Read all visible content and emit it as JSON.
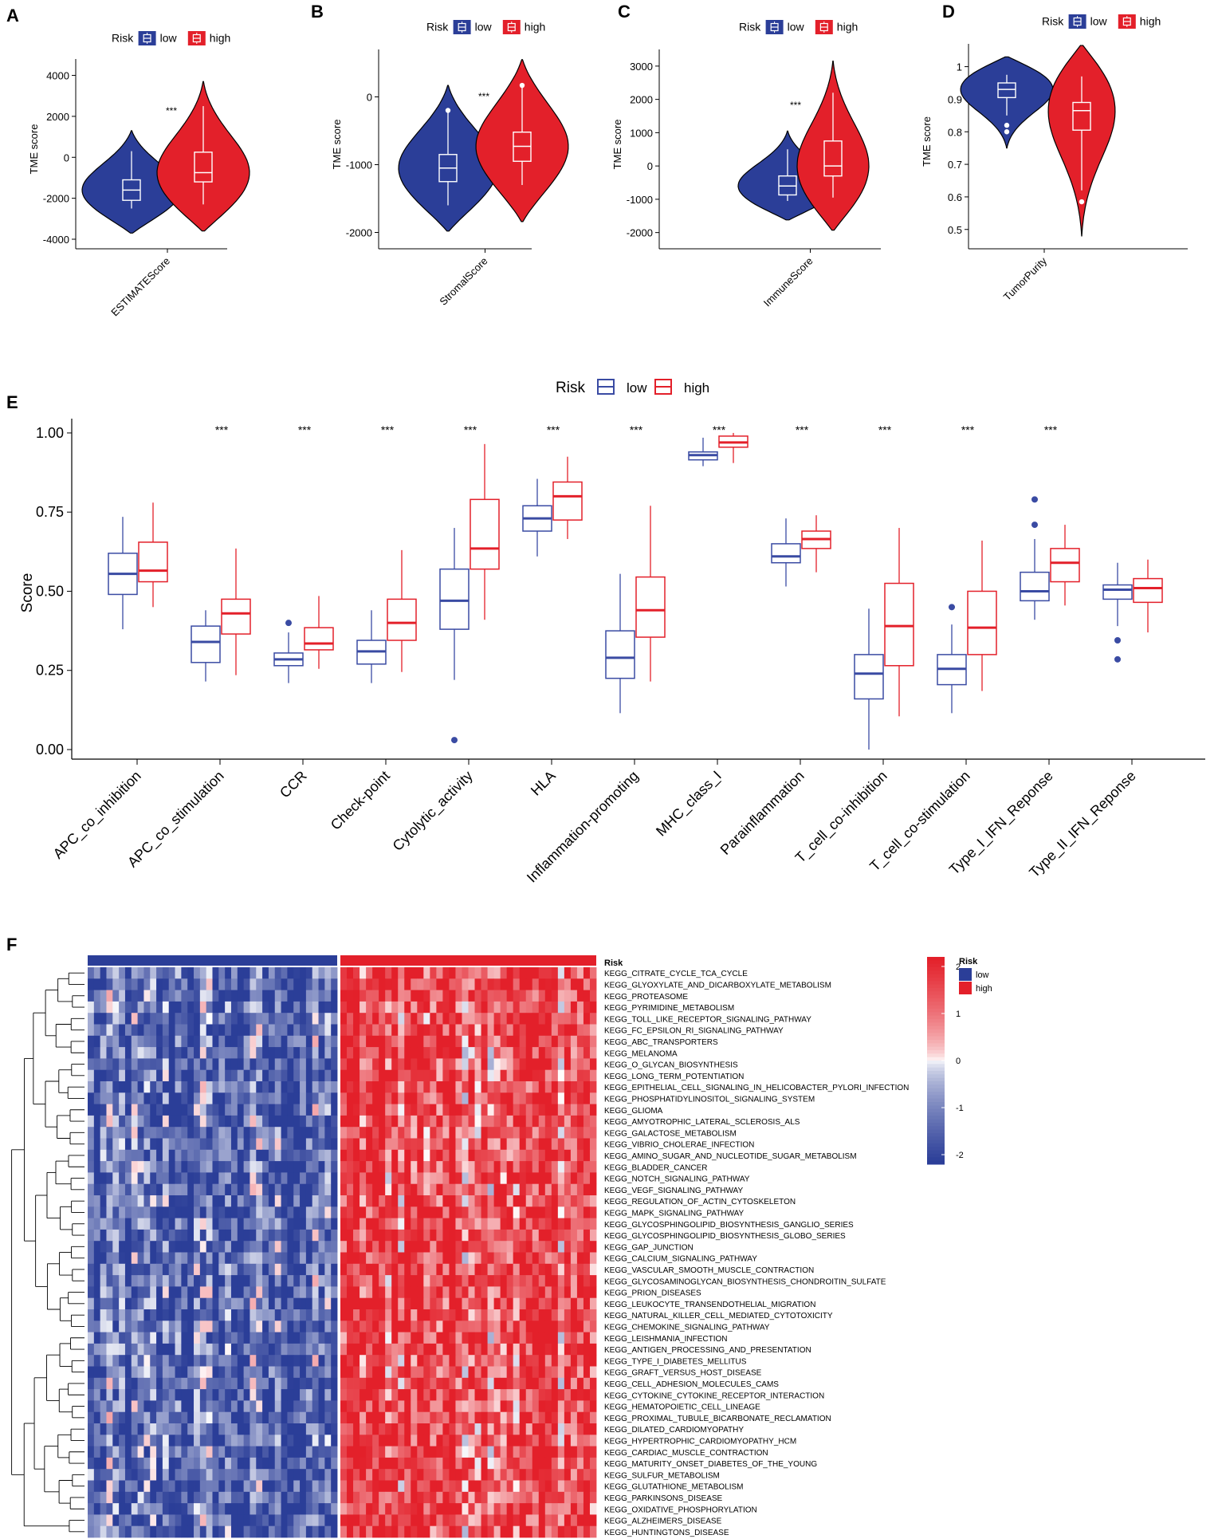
{
  "colors": {
    "low": "#2b3e98",
    "high": "#e3202a",
    "low_line": "#3a4ba3",
    "high_line": "#e3202a",
    "mid": "#ffffff"
  },
  "chart_data": [
    {
      "panel": "A",
      "type": "violin",
      "legend_title": "Risk",
      "legend_labels": [
        "low",
        "high"
      ],
      "ylabel": "TME score",
      "xlabel": "ESTIMATEScore",
      "ylim": [
        -4000,
        4800
      ],
      "yticks": [
        -4000,
        -2000,
        0,
        2000,
        4000
      ],
      "significance": "***",
      "groups": [
        {
          "name": "low",
          "min": -3700,
          "q1": -2100,
          "median": -1600,
          "q3": -1100,
          "max": 1300,
          "whisker_lo": -2500,
          "whisker_hi": 300,
          "outliers": []
        },
        {
          "name": "high",
          "min": -3600,
          "q1": -1200,
          "median": -750,
          "q3": 250,
          "max": 3700,
          "whisker_lo": -2300,
          "whisker_hi": 2500,
          "outliers": []
        }
      ]
    },
    {
      "panel": "B",
      "type": "violin",
      "legend_title": "Risk",
      "legend_labels": [
        "low",
        "high"
      ],
      "ylabel": "TME score",
      "xlabel": "StromalScore",
      "ylim": [
        -2100,
        700
      ],
      "yticks": [
        -2000,
        -1000,
        0
      ],
      "significance": "***",
      "groups": [
        {
          "name": "low",
          "min": -1980,
          "q1": -1250,
          "median": -1050,
          "q3": -850,
          "max": 170,
          "whisker_lo": -1600,
          "whisker_hi": -200,
          "outliers": [
            -200
          ]
        },
        {
          "name": "high",
          "min": -1840,
          "q1": -950,
          "median": -730,
          "q3": -520,
          "max": 550,
          "whisker_lo": -1300,
          "whisker_hi": 150,
          "outliers": [
            170
          ]
        }
      ]
    },
    {
      "panel": "C",
      "type": "violin",
      "legend_title": "Risk",
      "legend_labels": [
        "low",
        "high"
      ],
      "ylabel": "TME score",
      "xlabel": "ImmuneScore",
      "ylim": [
        -2200,
        3500
      ],
      "yticks": [
        -2000,
        -1000,
        0,
        1000,
        2000,
        3000
      ],
      "significance": "***",
      "groups": [
        {
          "name": "low",
          "min": -1620,
          "q1": -870,
          "median": -600,
          "q3": -300,
          "max": 1050,
          "whisker_lo": -1050,
          "whisker_hi": 500,
          "outliers": []
        },
        {
          "name": "high",
          "min": -1930,
          "q1": -300,
          "median": 0,
          "q3": 750,
          "max": 3150,
          "whisker_lo": -950,
          "whisker_hi": 2200,
          "outliers": []
        }
      ]
    },
    {
      "panel": "D",
      "type": "violin",
      "legend_title": "Risk",
      "legend_labels": [
        "low",
        "high"
      ],
      "ylabel": "TME score",
      "xlabel": "TumorPurity",
      "ylim": [
        0.47,
        1.07
      ],
      "yticks": [
        0.5,
        0.6,
        0.7,
        0.8,
        0.9,
        1.0
      ],
      "significance": "***",
      "groups": [
        {
          "name": "low",
          "min": 0.75,
          "q1": 0.905,
          "median": 0.93,
          "q3": 0.95,
          "max": 1.03,
          "whisker_lo": 0.85,
          "whisker_hi": 0.975,
          "outliers": [
            0.82,
            0.8
          ]
        },
        {
          "name": "high",
          "min": 0.48,
          "q1": 0.805,
          "median": 0.865,
          "q3": 0.89,
          "max": 1.065,
          "whisker_lo": 0.62,
          "whisker_hi": 0.97,
          "outliers": [
            0.585
          ]
        }
      ]
    },
    {
      "panel": "E",
      "type": "boxplot",
      "legend_title": "Risk",
      "legend_labels": [
        "low",
        "high"
      ],
      "ylabel": "Score",
      "ylim": [
        0,
        1.02
      ],
      "yticks": [
        "0.00",
        "0.25",
        "0.50",
        "0.75",
        "1.00"
      ],
      "categories": [
        "APC_co_inhibition",
        "APC_co_stimulation",
        "CCR",
        "Check-point",
        "Cytolytic_activity",
        "HLA",
        "Inflammation-promoting",
        "MHC_class_I",
        "Parainflammation",
        "T_cell_co-inhibition",
        "T_cell_co-stimulation",
        "Type_I_IFN_Reponse",
        "Type_II_IFN_Reponse"
      ],
      "significance": [
        "",
        "***",
        "***",
        "***",
        "***",
        "***",
        "***",
        "***",
        "***",
        "***",
        "***",
        "***",
        ""
      ],
      "series": [
        {
          "name": "low",
          "boxes": [
            {
              "lo": 0.38,
              "q1": 0.49,
              "med": 0.555,
              "q3": 0.62,
              "hi": 0.735,
              "out": []
            },
            {
              "lo": 0.215,
              "q1": 0.275,
              "med": 0.34,
              "q3": 0.39,
              "hi": 0.44,
              "out": []
            },
            {
              "lo": 0.21,
              "q1": 0.265,
              "med": 0.285,
              "q3": 0.305,
              "hi": 0.37,
              "out": [
                0.4
              ]
            },
            {
              "lo": 0.21,
              "q1": 0.27,
              "med": 0.31,
              "q3": 0.345,
              "hi": 0.44,
              "out": []
            },
            {
              "lo": 0.22,
              "q1": 0.38,
              "med": 0.47,
              "q3": 0.57,
              "hi": 0.7,
              "out": [
                0.03
              ]
            },
            {
              "lo": 0.61,
              "q1": 0.69,
              "med": 0.73,
              "q3": 0.77,
              "hi": 0.855,
              "out": []
            },
            {
              "lo": 0.115,
              "q1": 0.225,
              "med": 0.29,
              "q3": 0.375,
              "hi": 0.555,
              "out": []
            },
            {
              "lo": 0.895,
              "q1": 0.915,
              "med": 0.93,
              "q3": 0.94,
              "hi": 0.985,
              "out": []
            },
            {
              "lo": 0.515,
              "q1": 0.59,
              "med": 0.61,
              "q3": 0.65,
              "hi": 0.73,
              "out": []
            },
            {
              "lo": 0.0,
              "q1": 0.16,
              "med": 0.24,
              "q3": 0.3,
              "hi": 0.445,
              "out": []
            },
            {
              "lo": 0.115,
              "q1": 0.205,
              "med": 0.255,
              "q3": 0.3,
              "hi": 0.395,
              "out": [
                0.45
              ]
            },
            {
              "lo": 0.41,
              "q1": 0.47,
              "med": 0.5,
              "q3": 0.56,
              "hi": 0.665,
              "out": [
                0.71,
                0.79
              ]
            },
            {
              "lo": 0.39,
              "q1": 0.475,
              "med": 0.505,
              "q3": 0.52,
              "hi": 0.59,
              "out": [
                0.345,
                0.285
              ]
            }
          ]
        },
        {
          "name": "high",
          "boxes": [
            {
              "lo": 0.45,
              "q1": 0.53,
              "med": 0.565,
              "q3": 0.655,
              "hi": 0.78,
              "out": []
            },
            {
              "lo": 0.235,
              "q1": 0.365,
              "med": 0.43,
              "q3": 0.475,
              "hi": 0.635,
              "out": []
            },
            {
              "lo": 0.255,
              "q1": 0.315,
              "med": 0.335,
              "q3": 0.385,
              "hi": 0.485,
              "out": []
            },
            {
              "lo": 0.245,
              "q1": 0.345,
              "med": 0.4,
              "q3": 0.475,
              "hi": 0.63,
              "out": []
            },
            {
              "lo": 0.41,
              "q1": 0.57,
              "med": 0.635,
              "q3": 0.79,
              "hi": 0.965,
              "out": []
            },
            {
              "lo": 0.665,
              "q1": 0.725,
              "med": 0.8,
              "q3": 0.845,
              "hi": 0.925,
              "out": []
            },
            {
              "lo": 0.215,
              "q1": 0.355,
              "med": 0.44,
              "q3": 0.545,
              "hi": 0.77,
              "out": []
            },
            {
              "lo": 0.905,
              "q1": 0.955,
              "med": 0.97,
              "q3": 0.99,
              "hi": 1.0,
              "out": []
            },
            {
              "lo": 0.56,
              "q1": 0.635,
              "med": 0.665,
              "q3": 0.69,
              "hi": 0.74,
              "out": []
            },
            {
              "lo": 0.105,
              "q1": 0.265,
              "med": 0.39,
              "q3": 0.525,
              "hi": 0.7,
              "out": []
            },
            {
              "lo": 0.185,
              "q1": 0.3,
              "med": 0.385,
              "q3": 0.5,
              "hi": 0.66,
              "out": []
            },
            {
              "lo": 0.455,
              "q1": 0.53,
              "med": 0.59,
              "q3": 0.635,
              "hi": 0.71,
              "out": []
            },
            {
              "lo": 0.37,
              "q1": 0.465,
              "med": 0.51,
              "q3": 0.54,
              "hi": 0.6,
              "out": []
            }
          ]
        }
      ]
    },
    {
      "panel": "F",
      "type": "heatmap",
      "annotation_label": "Risk",
      "legend_title": "Risk",
      "legend_labels": [
        "low",
        "high"
      ],
      "scale_ticks": [
        "2",
        "1",
        "0",
        "-1",
        "-2"
      ],
      "groups": [
        {
          "name": "low",
          "n": 40
        },
        {
          "name": "high",
          "n": 40
        }
      ],
      "rows": [
        "KEGG_CITRATE_CYCLE_TCA_CYCLE",
        "KEGG_GLYOXYLATE_AND_DICARBOXYLATE_METABOLISM",
        "KEGG_PROTEASOME",
        "KEGG_PYRIMIDINE_METABOLISM",
        "KEGG_TOLL_LIKE_RECEPTOR_SIGNALING_PATHWAY",
        "KEGG_FC_EPSILON_RI_SIGNALING_PATHWAY",
        "KEGG_ABC_TRANSPORTERS",
        "KEGG_MELANOMA",
        "KEGG_O_GLYCAN_BIOSYNTHESIS",
        "KEGG_LONG_TERM_POTENTIATION",
        "KEGG_EPITHELIAL_CELL_SIGNALING_IN_HELICOBACTER_PYLORI_INFECTION",
        "KEGG_PHOSPHATIDYLINOSITOL_SIGNALING_SYSTEM",
        "KEGG_GLIOMA",
        "KEGG_AMYOTROPHIC_LATERAL_SCLEROSIS_ALS",
        "KEGG_GALACTOSE_METABOLISM",
        "KEGG_VIBRIO_CHOLERAE_INFECTION",
        "KEGG_AMINO_SUGAR_AND_NUCLEOTIDE_SUGAR_METABOLISM",
        "KEGG_BLADDER_CANCER",
        "KEGG_NOTCH_SIGNALING_PATHWAY",
        "KEGG_VEGF_SIGNALING_PATHWAY",
        "KEGG_REGULATION_OF_ACTIN_CYTOSKELETON",
        "KEGG_MAPK_SIGNALING_PATHWAY",
        "KEGG_GLYCOSPHINGOLIPID_BIOSYNTHESIS_GANGLIO_SERIES",
        "KEGG_GLYCOSPHINGOLIPID_BIOSYNTHESIS_GLOBO_SERIES",
        "KEGG_GAP_JUNCTION",
        "KEGG_CALCIUM_SIGNALING_PATHWAY",
        "KEGG_VASCULAR_SMOOTH_MUSCLE_CONTRACTION",
        "KEGG_GLYCOSAMINOGLYCAN_BIOSYNTHESIS_CHONDROITIN_SULFATE",
        "KEGG_PRION_DISEASES",
        "KEGG_LEUKOCYTE_TRANSENDOTHELIAL_MIGRATION",
        "KEGG_NATURAL_KILLER_CELL_MEDIATED_CYTOTOXICITY",
        "KEGG_CHEMOKINE_SIGNALING_PATHWAY",
        "KEGG_LEISHMANIA_INFECTION",
        "KEGG_ANTIGEN_PROCESSING_AND_PRESENTATION",
        "KEGG_TYPE_I_DIABETES_MELLITUS",
        "KEGG_GRAFT_VERSUS_HOST_DISEASE",
        "KEGG_CELL_ADHESION_MOLECULES_CAMS",
        "KEGG_CYTOKINE_CYTOKINE_RECEPTOR_INTERACTION",
        "KEGG_HEMATOPOIETIC_CELL_LINEAGE",
        "KEGG_PROXIMAL_TUBULE_BICARBONATE_RECLAMATION",
        "KEGG_DILATED_CARDIOMYOPATHY",
        "KEGG_HYPERTROPHIC_CARDIOMYOPATHY_HCM",
        "KEGG_CARDIAC_MUSCLE_CONTRACTION",
        "KEGG_MATURITY_ONSET_DIABETES_OF_THE_YOUNG",
        "KEGG_SULFUR_METABOLISM",
        "KEGG_GLUTATHIONE_METABOLISM",
        "KEGG_PARKINSONS_DISEASE",
        "KEGG_OXIDATIVE_PHOSPHORYLATION",
        "KEGG_ALZHEIMERS_DISEASE",
        "KEGG_HUNTINGTONS_DISEASE"
      ]
    }
  ]
}
